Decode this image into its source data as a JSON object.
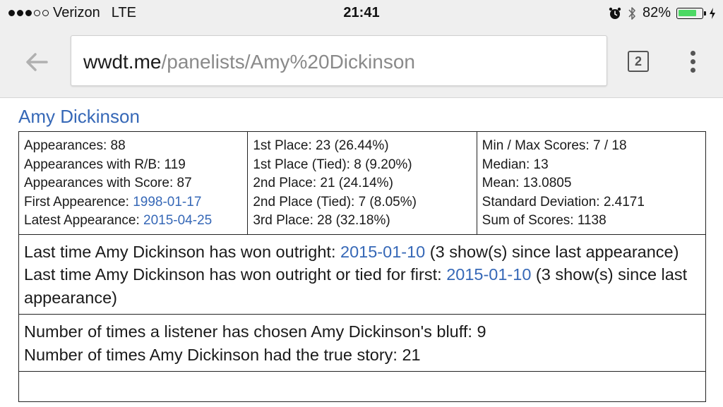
{
  "status_bar": {
    "carrier": "Verizon",
    "network": "LTE",
    "time": "21:41",
    "battery": "82%",
    "battery_level": 0.82,
    "signal_strength_dots": [
      true,
      true,
      true,
      false,
      false
    ],
    "icons": [
      "alarm-icon",
      "bluetooth-icon",
      "battery-icon",
      "charging-icon"
    ]
  },
  "browser": {
    "url_domain": "wwdt.me",
    "url_path": "/panelists/Amy%20Dickinson",
    "tab_count": "2",
    "icons": [
      "back-arrow-icon",
      "tab-switcher-icon",
      "overflow-menu-icon"
    ]
  },
  "page": {
    "panelist_name": "Amy Dickinson",
    "link_color": "#3668b7",
    "col1": {
      "appearances": "Appearances: 88",
      "appearances_rb": "Appearances with R/B: 119",
      "appearances_score": "Appearances with Score: 87",
      "first_label": "First Appearence: ",
      "first_date": "1998-01-17",
      "latest_label": "Latest Appearance: ",
      "latest_date": "2015-04-25"
    },
    "col2": {
      "first_place": "1st Place: 23 (26.44%)",
      "first_place_tied": "1st Place (Tied): 8 (9.20%)",
      "second_place": "2nd Place: 21 (24.14%)",
      "second_place_tied": "2nd Place (Tied): 7 (8.05%)",
      "third_place": "3rd Place: 28 (32.18%)"
    },
    "col3": {
      "min_max": "Min / Max Scores: 7 / 18",
      "median": "Median: 13",
      "mean": "Mean: 13.0805",
      "std_dev": "Standard Deviation: 2.4171",
      "sum": "Sum of Scores: 1138"
    },
    "wins": {
      "outright_prefix": "Last time Amy Dickinson has won outright: ",
      "outright_date": "2015-01-10",
      "outright_suffix": " (3 show(s) since last appearance)",
      "tied_prefix": "Last time Amy Dickinson has won outright or tied for first: ",
      "tied_date": "2015-01-10",
      "tied_suffix": " (3 show(s) since last appearance)"
    },
    "bluff": {
      "chosen": "Number of times a listener has chosen Amy Dickinson's bluff: 9",
      "true_story": "Number of times Amy Dickinson had the true story: 21"
    }
  }
}
